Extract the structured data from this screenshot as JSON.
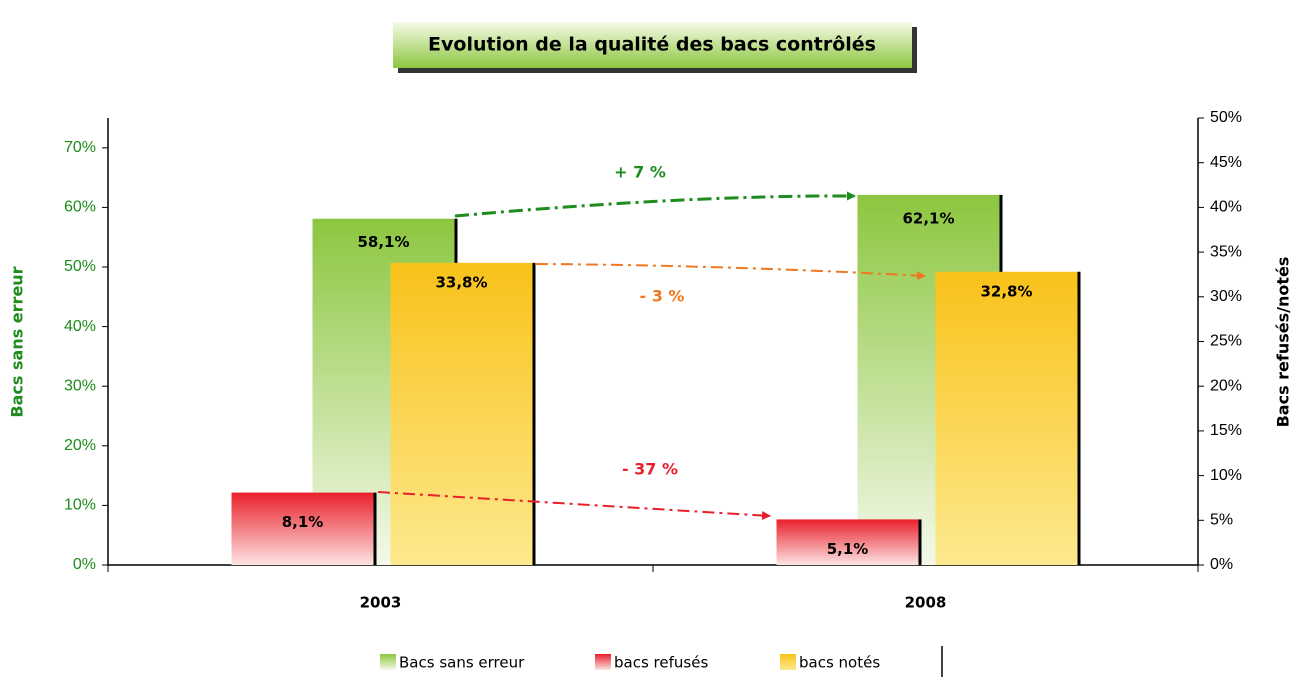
{
  "chart_data": {
    "type": "bar",
    "title": "Evolution de la qualité des bacs contrôlés",
    "ylabel": "Bacs sans erreur",
    "y2label": "Bacs refusés/notés",
    "categories": [
      "2003",
      "2008"
    ],
    "series": [
      {
        "name": "Bacs sans erreur",
        "color": "#8cc63f",
        "values": [
          58.1,
          62.1
        ],
        "value_labels": [
          "58,1%",
          "62,1%"
        ]
      },
      {
        "name": "bacs refusés",
        "color": "#e8202a",
        "axis": "y2",
        "values": [
          8.1,
          5.1
        ],
        "value_labels": [
          "8,1%",
          "5,1%"
        ]
      },
      {
        "name": "bacs notés",
        "color": "#f9c21a",
        "axis": "y2",
        "values": [
          33.8,
          32.8
        ],
        "value_labels": [
          "33,8%",
          "32,8%"
        ]
      }
    ],
    "ylim": [
      0,
      75
    ],
    "yticks": [
      {
        "value": 0,
        "label": "0%"
      },
      {
        "value": 10,
        "label": "10%"
      },
      {
        "value": 20,
        "label": "20%"
      },
      {
        "value": 30,
        "label": "30%"
      },
      {
        "value": 40,
        "label": "40%"
      },
      {
        "value": 50,
        "label": "50%"
      },
      {
        "value": 60,
        "label": "60%"
      },
      {
        "value": 70,
        "label": "70%"
      }
    ],
    "y2lim": [
      0,
      50
    ],
    "y2ticks": [
      {
        "value": 0,
        "label": "0%"
      },
      {
        "value": 5,
        "label": "5%"
      },
      {
        "value": 10,
        "label": "10%"
      },
      {
        "value": 15,
        "label": "15%"
      },
      {
        "value": 20,
        "label": "20%"
      },
      {
        "value": 25,
        "label": "25%"
      },
      {
        "value": 30,
        "label": "30%"
      },
      {
        "value": 35,
        "label": "35%"
      },
      {
        "value": 40,
        "label": "40%"
      },
      {
        "value": 45,
        "label": "45%"
      },
      {
        "value": 50,
        "label": "50%"
      }
    ],
    "annotations": [
      {
        "text": "+ 7 %",
        "color": "#1e8c1e"
      },
      {
        "text": "- 3 %",
        "color": "#f07820"
      },
      {
        "text": "- 37 %",
        "color": "#e8202a"
      }
    ],
    "legend": "bottom"
  }
}
